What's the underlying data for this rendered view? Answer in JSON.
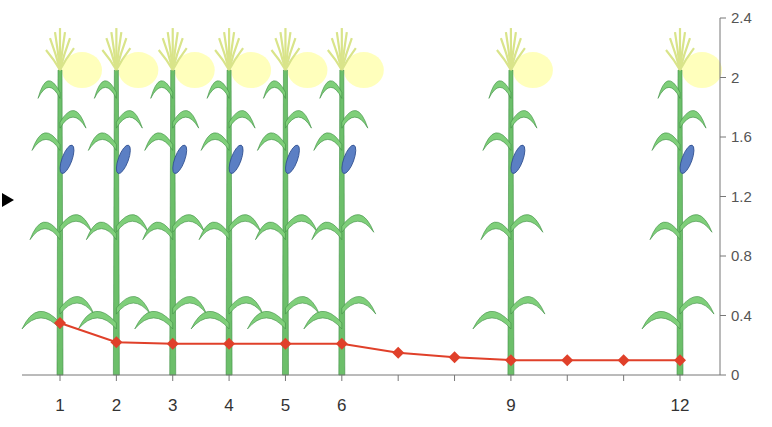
{
  "chart_data": {
    "type": "line",
    "categories": [
      "1",
      "2",
      "3",
      "4",
      "5",
      "6",
      null,
      null,
      "9",
      null,
      null,
      "12"
    ],
    "values": [
      0.35,
      0.22,
      0.21,
      0.21,
      0.21,
      0.21,
      0.15,
      0.12,
      0.1,
      0.1,
      0.1,
      0.1
    ],
    "color": "#e0402a",
    "marker": "diamond",
    "line_style": "solid",
    "ylim": [
      0,
      2.4
    ],
    "yticks": [
      0,
      0.4,
      0.8,
      1.2,
      1.6,
      2,
      2.4
    ],
    "grid": false
  }
}
